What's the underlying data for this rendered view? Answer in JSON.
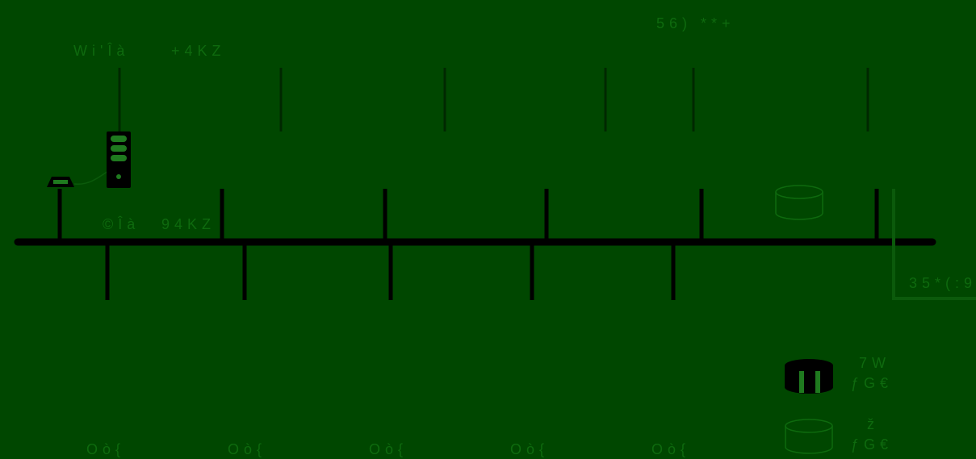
{
  "labels": {
    "top_right": "56) **+",
    "top_left_a": "Wi'Îà",
    "top_left_b": "+4KZ",
    "mid_left_a": "©Îà",
    "mid_left_b": "94KZ",
    "right_edge": "35*(:9",
    "bottom_stations": [
      "Oò{",
      "Oò{",
      "Oò{",
      "Oò{",
      "Oò{"
    ],
    "legend_top_a": "7W",
    "legend_top_b": "ƒG€",
    "legend_bottom_a": "ž",
    "legend_bottom_b": "ƒG€"
  },
  "colors": {
    "background": "#004700",
    "line": "#000000",
    "text": "#0e6a0e",
    "faint_line": "#002800",
    "icon_fill": "#1f7a1f"
  },
  "icons": {
    "terminal": "terminal-icon",
    "server": "server-icon",
    "database": "database-icon",
    "legend_dark": "dark-cylinder-icon",
    "legend_light": "light-cylinder-icon"
  }
}
